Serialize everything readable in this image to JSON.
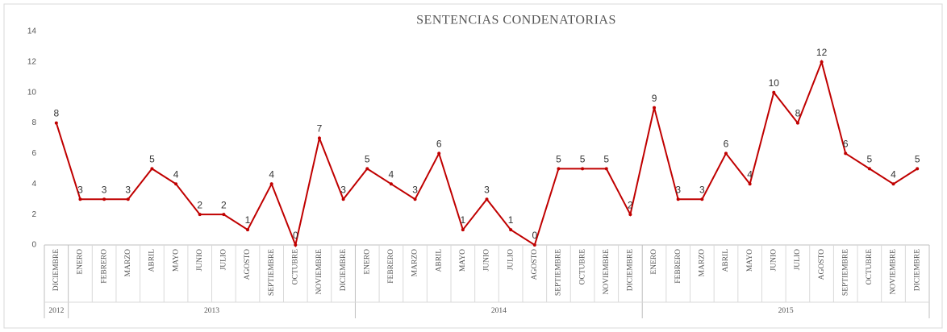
{
  "chart_data": {
    "type": "line",
    "title": "SENTENCIAS CONDENATORIAS",
    "category_groups": [
      {
        "name": "2012",
        "categories": [
          "DICIEMBRE"
        ]
      },
      {
        "name": "2013",
        "categories": [
          "ENERO",
          "FEBRERO",
          "MARZO",
          "ABRIL",
          "MAYO",
          "JUNIO",
          "JULIO",
          "AGOSTO",
          "SEPTIEMBRE",
          "OCTUBRE",
          "NOVIEMBRE",
          "DICIEMBRE"
        ]
      },
      {
        "name": "2014",
        "categories": [
          "ENERO",
          "FEBRERO",
          "MARZO",
          "ABRIL",
          "MAYO",
          "JUNIO",
          "JULIO",
          "AGOSTO",
          "SEPTIEMBRE",
          "OCTUBRE",
          "NOVIEMBRE",
          "DICIEMBRE"
        ]
      },
      {
        "name": "2015",
        "categories": [
          "ENERO",
          "FEBRERO",
          "MARZO",
          "ABRIL",
          "MAYO",
          "JUNIO",
          "JULIO",
          "AGOSTO",
          "SEPTIEMBRE",
          "OCTUBRE",
          "NOVIEMBRE",
          "DICIEMBRE"
        ]
      }
    ],
    "values": [
      8,
      3,
      3,
      3,
      5,
      4,
      2,
      2,
      1,
      4,
      0,
      7,
      3,
      5,
      4,
      3,
      6,
      1,
      3,
      1,
      0,
      5,
      5,
      5,
      2,
      9,
      3,
      3,
      6,
      4,
      10,
      8,
      12,
      6,
      5,
      4,
      5
    ],
    "color": "#c00000",
    "ylim": [
      0,
      14
    ],
    "yticks": [
      0,
      2,
      4,
      6,
      8,
      10,
      12,
      14
    ],
    "grid": false
  }
}
